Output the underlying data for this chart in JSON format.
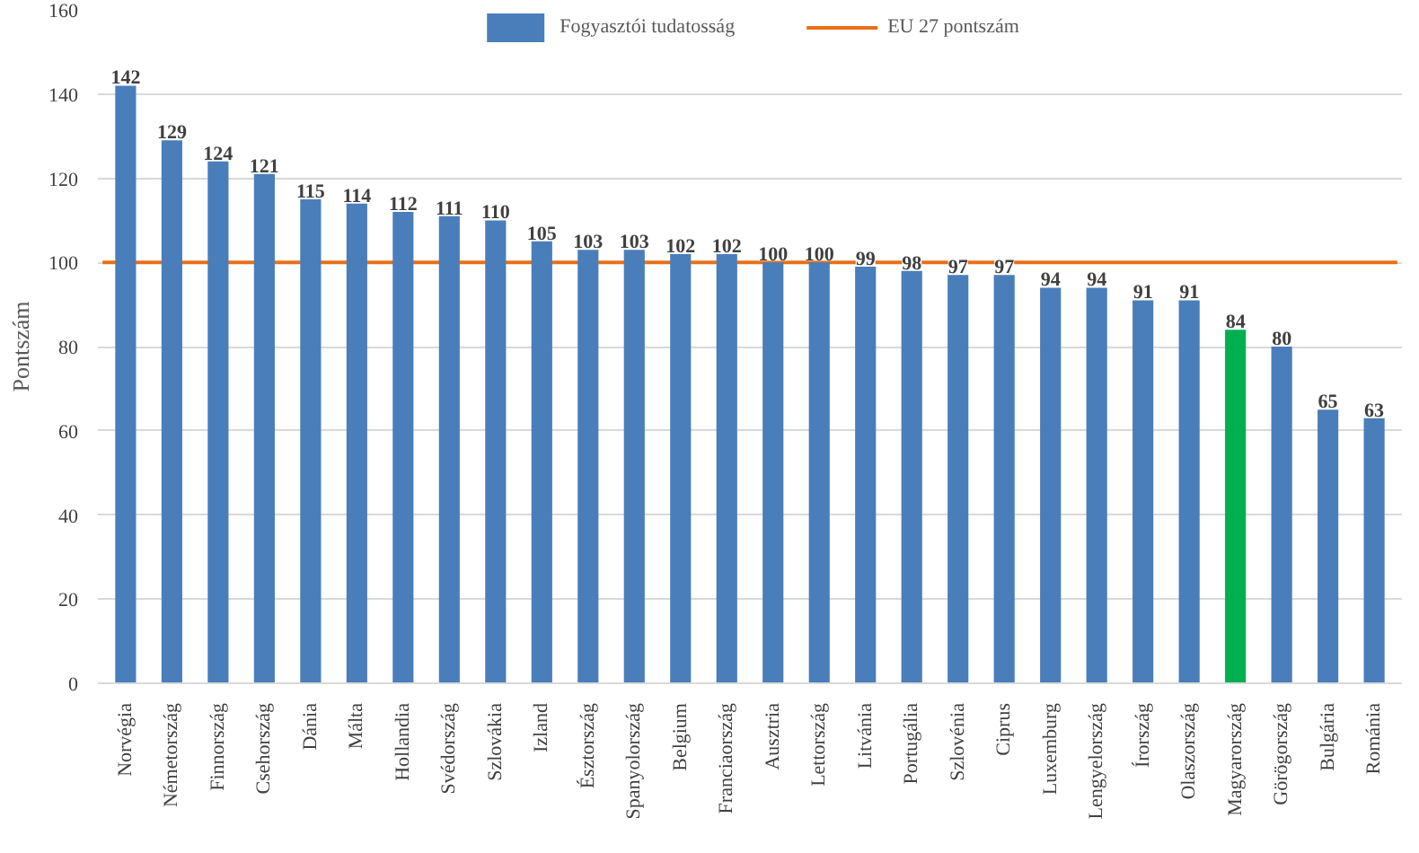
{
  "chart_data": {
    "type": "bar",
    "ylabel": "Pontszám",
    "categories": [
      "Norvégia",
      "Németország",
      "Finnország",
      "Csehország",
      "Dánia",
      "Málta",
      "Hollandia",
      "Svédország",
      "Szlovákia",
      "Izland",
      "Észtország",
      "Spanyolország",
      "Belgium",
      "Franciaország",
      "Ausztria",
      "Lettország",
      "Litvánia",
      "Portugália",
      "Szlovénia",
      "Ciprus",
      "Luxemburg",
      "Lengyelország",
      "Írország",
      "Olaszország",
      "Magyarország",
      "Görögország",
      "Bulgária",
      "Románia"
    ],
    "series": [
      {
        "name": "Fogyasztói tudatosság",
        "color": "#4a7ebb",
        "colors": [
          null,
          null,
          null,
          null,
          null,
          null,
          null,
          null,
          null,
          null,
          null,
          null,
          null,
          null,
          null,
          null,
          null,
          null,
          null,
          null,
          null,
          null,
          null,
          null,
          "#00b050",
          null,
          null,
          null
        ],
        "values": [
          142,
          129,
          124,
          121,
          115,
          114,
          112,
          111,
          110,
          105,
          103,
          103,
          102,
          102,
          100,
          100,
          99,
          98,
          97,
          97,
          94,
          94,
          91,
          91,
          84,
          80,
          65,
          63
        ]
      }
    ],
    "ref_lines": [
      {
        "axis": "y",
        "value": 100,
        "label": "EU 27 pontszám",
        "color": "#e8701a",
        "line_style": "solid"
      }
    ],
    "ylim": [
      0,
      160
    ],
    "yticks": [
      0,
      20,
      40,
      60,
      80,
      100,
      120,
      140,
      160
    ],
    "grid": "y",
    "legend": "top",
    "data_labels": true
  }
}
